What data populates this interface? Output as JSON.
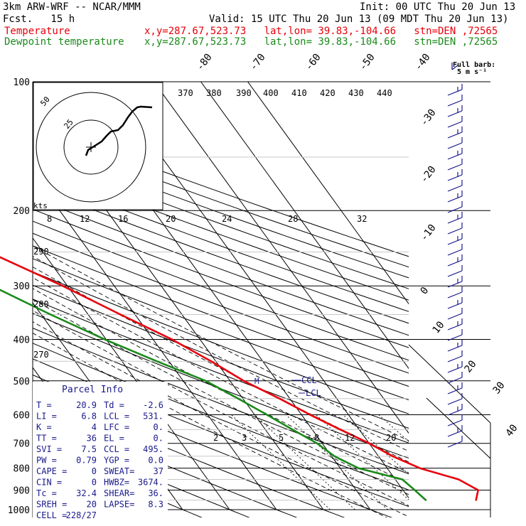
{
  "header": {
    "model": "3km ARW-WRF -- NCAR/MMM",
    "init": "Init: 00 UTC Thu 20 Jun 13",
    "fcst": "Fcst.   15 h",
    "valid": "Valid: 15 UTC Thu 20 Jun 13 (09 MDT Thu 20 Jun 13)",
    "temp_label": "Temperature",
    "temp_loc": "x,y=287.67,523.73   lat,lon= 39.83,-104.66   stn=DEN ,72565",
    "dew_label": "Dewpoint temperature",
    "dew_loc": "x,y=287.67,523.73   lat,lon= 39.83,-104.66   stn=DEN ,72565",
    "full_barb": "Full barb:",
    "full_barb_units": "5 m s⁻¹"
  },
  "colors": {
    "temperature": "#e8000b",
    "dewpoint": "#1a8a1a",
    "parcel_text": "#1a1a8c",
    "grid": "#000000"
  },
  "chart_data": {
    "type": "line",
    "diagram": "Skew-T log-P",
    "pressure_levels": [
      100,
      200,
      300,
      400,
      500,
      600,
      700,
      800,
      900,
      1000
    ],
    "ylim": [
      1000,
      100
    ],
    "isotherm_labels": [
      "-80",
      "-70",
      "-60",
      "-50",
      "-40",
      "-30",
      "-20",
      "-10",
      "0",
      "10",
      "20",
      "30",
      "40"
    ],
    "theta_e_labels": [
      "370",
      "380",
      "390",
      "400",
      "410",
      "420",
      "430",
      "440"
    ],
    "theta_labels": [
      "290",
      "280",
      "270"
    ],
    "mixing_ratio_labels": [
      "2",
      "3",
      "5",
      "8",
      "12",
      "20"
    ],
    "hodograph": {
      "units": "kts",
      "rings": [
        "25",
        "50"
      ],
      "speed_labels": [
        "8",
        "12",
        "16",
        "20",
        "24",
        "28",
        "32"
      ]
    },
    "series": [
      {
        "name": "Temperature",
        "color": "#e8000b",
        "points": [
          [
            950,
            24
          ],
          [
            900,
            26
          ],
          [
            850,
            23.5
          ],
          [
            800,
            17
          ],
          [
            750,
            13
          ],
          [
            700,
            10
          ],
          [
            650,
            6
          ],
          [
            600,
            1.8
          ],
          [
            550,
            -2.2
          ],
          [
            500,
            -7.1
          ],
          [
            450,
            -11
          ],
          [
            400,
            -16
          ],
          [
            350,
            -23.1
          ],
          [
            300,
            -31
          ],
          [
            250,
            -41.5
          ],
          [
            200,
            -54.6
          ],
          [
            170,
            -59.3
          ],
          [
            150,
            -58.4
          ],
          [
            130,
            -51
          ],
          [
            115,
            -52
          ],
          [
            105,
            -55.2
          ],
          [
            100,
            -58
          ]
        ]
      },
      {
        "name": "Dewpoint temperature",
        "color": "#1a8a1a",
        "points": [
          [
            950,
            13.3
          ],
          [
            900,
            12.5
          ],
          [
            850,
            11.5
          ],
          [
            800,
            3.9
          ],
          [
            750,
            0.6
          ],
          [
            700,
            -1.1
          ],
          [
            650,
            -4.2
          ],
          [
            600,
            -7.4
          ],
          [
            550,
            -11
          ],
          [
            500,
            -15.2
          ],
          [
            450,
            -22.6
          ],
          [
            400,
            -30.3
          ],
          [
            350,
            -38
          ],
          [
            300,
            -46.1
          ],
          [
            250,
            -57.5
          ],
          [
            200,
            -70
          ],
          [
            170,
            -74
          ],
          [
            150,
            -75.5
          ],
          [
            130,
            -78.6
          ],
          [
            115,
            -80.9
          ],
          [
            105,
            -83
          ],
          [
            100,
            -84
          ]
        ]
      }
    ],
    "levels_marked": {
      "CCL": "CCL",
      "LCL": "LCL"
    }
  },
  "parcel_info": {
    "title": "Parcel Info",
    "rows": [
      [
        "T   =",
        "20.9",
        "Td  =",
        "-2.6"
      ],
      [
        "LI  =",
        "6.8",
        "LCL =",
        "531."
      ],
      [
        "K   =",
        "4",
        "LFC =",
        "0."
      ],
      [
        "TT  =",
        "36",
        "EL  =",
        "0."
      ],
      [
        "SVI =",
        "7.5",
        "CCL =",
        "495."
      ],
      [
        "PW  =",
        "0.79",
        "YGP =",
        "0.0"
      ],
      [
        "CAPE =",
        "0",
        "SWEAT=",
        "37"
      ],
      [
        "CIN  =",
        "0",
        "HWBZ=",
        "3674."
      ],
      [
        "Tc  =",
        "32.4",
        "SHEAR=",
        "36."
      ],
      [
        "SREH =",
        "20",
        "LAPSE=",
        "8.3"
      ],
      [
        "CELL =",
        "228/27",
        "",
        ""
      ]
    ]
  }
}
